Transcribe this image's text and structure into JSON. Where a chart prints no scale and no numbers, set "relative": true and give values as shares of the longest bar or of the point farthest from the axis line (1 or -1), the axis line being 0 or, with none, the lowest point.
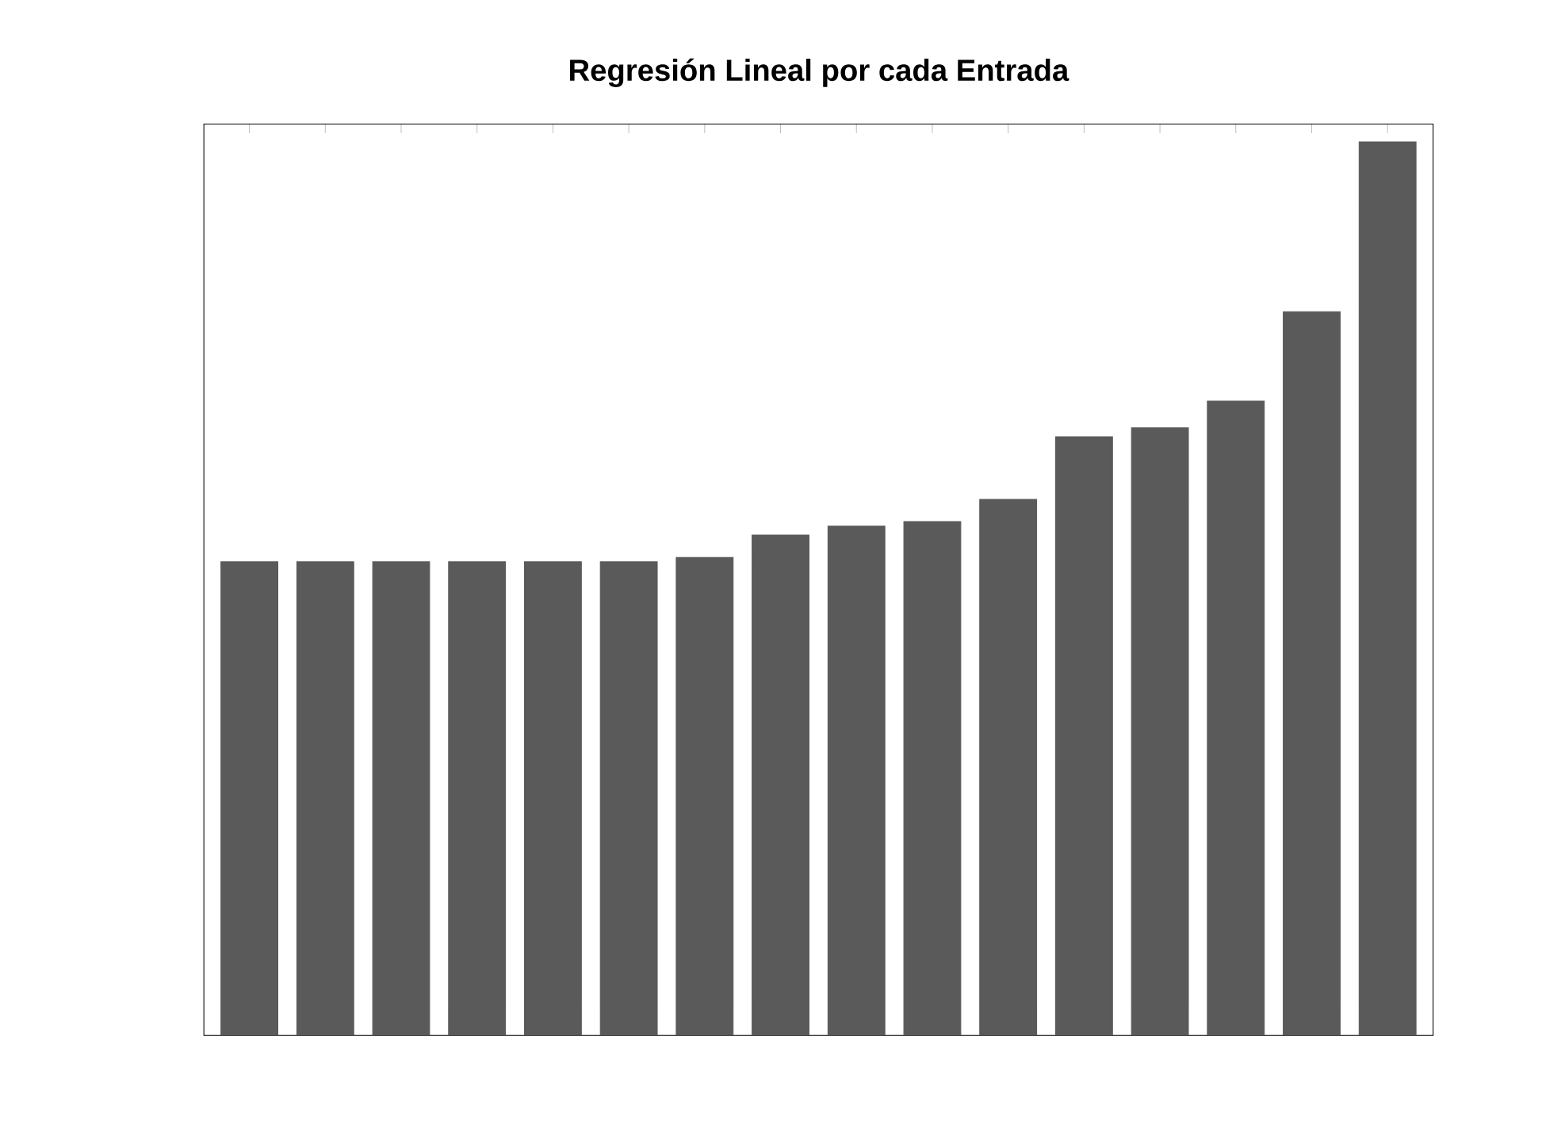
{
  "chart_data": {
    "type": "bar",
    "title": "Regresión Lineal por cada Entrada",
    "relative": true,
    "color": "#5a5a5a",
    "categories": [
      null,
      null,
      null,
      null,
      null,
      null,
      null,
      null,
      null,
      null,
      null,
      null,
      null,
      null,
      null,
      null
    ],
    "values": [
      0.53,
      0.53,
      0.53,
      0.53,
      0.53,
      0.53,
      0.535,
      0.56,
      0.57,
      0.575,
      0.6,
      0.67,
      0.68,
      0.71,
      0.81,
      1
    ]
  }
}
